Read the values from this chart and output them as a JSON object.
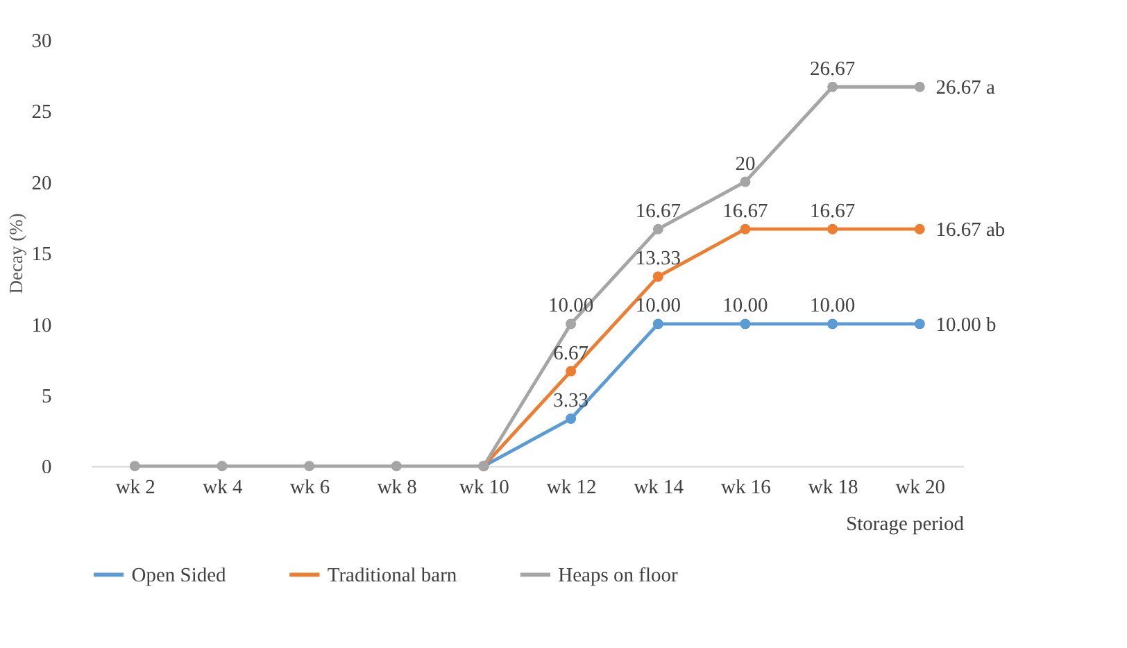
{
  "chart_data": {
    "type": "line",
    "xlabel": "Storage period",
    "ylabel": "Decay (%)",
    "categories": [
      "wk 2",
      "wk 4",
      "wk 6",
      "wk 8",
      "wk 10",
      "wk 12",
      "wk 14",
      "wk 16",
      "wk 18",
      "wk 20"
    ],
    "series": [
      {
        "name": "Open Sided",
        "color": "#5b9bd5",
        "values": [
          null,
          null,
          null,
          null,
          0,
          3.33,
          10,
          10,
          10,
          10
        ],
        "value_labels": [
          null,
          null,
          null,
          null,
          null,
          "3.33",
          "10.00",
          "10.00",
          "10.00",
          "10.00 b"
        ]
      },
      {
        "name": "Traditional barn",
        "color": "#ed7d31",
        "values": [
          null,
          null,
          null,
          null,
          0,
          6.67,
          13.33,
          16.67,
          16.67,
          16.67
        ],
        "value_labels": [
          null,
          null,
          null,
          null,
          null,
          "6.67",
          "13.33",
          "16.67",
          "16.67",
          "16.67 ab"
        ]
      },
      {
        "name": "Heaps on floor",
        "color": "#a5a5a5",
        "values": [
          0,
          0,
          0,
          0,
          0,
          10,
          16.67,
          20,
          26.67,
          26.67
        ],
        "value_labels": [
          null,
          null,
          null,
          null,
          null,
          "10.00",
          "16.67",
          "20",
          "26.67",
          "26.67 a"
        ]
      }
    ],
    "ylim": [
      0,
      30
    ],
    "yticks": [
      0,
      5,
      10,
      15,
      20,
      25,
      30
    ],
    "grid": false,
    "legend": "bottom",
    "marker": "circle",
    "line_style": "solid"
  }
}
